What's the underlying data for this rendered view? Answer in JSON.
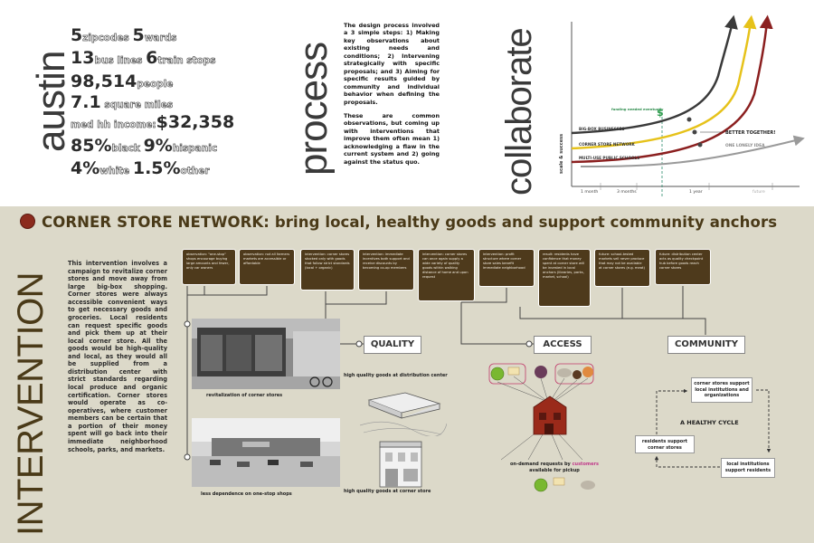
{
  "top": {
    "austin_word": "austin",
    "process_word": "process",
    "collaborate_word": "collaborate",
    "stats": [
      {
        "parts": [
          {
            "t": "5",
            "big": true
          },
          {
            "t": "zipcodes ",
            "big": false
          },
          {
            "t": "5",
            "big": true
          },
          {
            "t": "wards",
            "big": false
          }
        ]
      },
      {
        "parts": [
          {
            "t": "13",
            "big": true
          },
          {
            "t": "bus lines ",
            "big": false
          },
          {
            "t": "6",
            "big": true
          },
          {
            "t": "train stops",
            "big": false
          }
        ]
      },
      {
        "parts": [
          {
            "t": "98,514",
            "big": true
          },
          {
            "t": "people",
            "big": false
          }
        ]
      },
      {
        "parts": [
          {
            "t": "7.1",
            "big": true
          },
          {
            "t": " square miles",
            "big": false
          }
        ]
      },
      {
        "parts": [
          {
            "t": "med hh income:",
            "big": false
          },
          {
            "t": "$32,358",
            "big": true
          }
        ]
      },
      {
        "parts": [
          {
            "t": "85%",
            "big": true
          },
          {
            "t": "black ",
            "big": false
          },
          {
            "t": "9%",
            "big": true
          },
          {
            "t": "hispanic",
            "big": false
          }
        ]
      },
      {
        "parts": [
          {
            "t": "4%",
            "big": true
          },
          {
            "t": "white ",
            "big": false
          },
          {
            "t": "1.5%",
            "big": true
          },
          {
            "t": "other",
            "big": false
          }
        ]
      }
    ],
    "process_para1": "The design process involved a 3 simple steps: 1) Making key observations about existing needs and conditions; 2) Intervening strategically with specific proposals; and 3) Aiming for specific results guided by community and individual behavior when defining the proposals.",
    "process_para2": "These are common observations, but coming up with interventions that improve them often mean 1) acknowledging a flaw in the current system and 2) going against the status quo."
  },
  "chart_data": {
    "type": "line",
    "title": "",
    "xlabel": "",
    "ylabel": "scale & success",
    "x_ticks": [
      "1 month",
      "3 months",
      "1 year",
      "future"
    ],
    "series": [
      {
        "name": "BIG-BOX BUSINESSES",
        "color": "#3a3a3a"
      },
      {
        "name": "CORNER STORE NETWORK",
        "color": "#e6c21a"
      },
      {
        "name": "MULTI-USE PUBLIC SCHOOLS",
        "color": "#8b1f1f"
      },
      {
        "name": "ONE LONELY IDEA",
        "color": "#9a9a9a"
      }
    ],
    "annotations": [
      "BETTER TOGETHER!",
      "funding needed eventually",
      "$"
    ]
  },
  "bottom": {
    "intervention_word": "INTERVENTION",
    "headline": "CORNER STORE NETWORK: bring local, healthy goods and support community anchors",
    "intro": "This intervention involves a campaign to revitalize corner stores and move away from large big-box shopping. Corner stores were always accessible convenient ways to get necessary goods and groceries. Local residents can request specific goods and pick them up at their local corner store. All the goods would be high-quality and local, as they would all be supplied from a distribution center with strict standards regarding local produce and organic certification. Corner stores would operate as co-operatives, where customer members can be certain that a portion of their money spent will go back into their immediate neighborhood schools, parks, and markets.",
    "observations": [
      "observation: \"one-stop\" shops encourage buying large amounts and fewer, only car owners",
      "observation: not all farmers markets are accessible or affordable",
      "intervention: corner stores stocked only with goods that follow strict standards (local + organic)",
      "intervention: immediate incentives both support and receive discounts by becoming co-op members",
      "intervention: corner stores can once again supply a wide variety of quality goods within walking distance of home and upon request",
      "intervention: profit structure where corner store sales benefit immediate neighborhood",
      "result: residents have confidence that money spent at corner store will be invested in local anchors (libraries, parks, market, school)",
      "future: school-tested markets sell never produce that may not be available at corner stores (e.g. meat)",
      "future: distribution center acts as quality checkpoint hub before goods reach corner stores"
    ],
    "pillars": {
      "quality": "QUALITY",
      "access": "ACCESS",
      "community": "COMMUNITY"
    },
    "captions": {
      "photo1": "revitalization of corner stores",
      "photo2": "less dependence on one-stop shops",
      "quality1": "high quality goods at distribution center",
      "quality2": "high quality goods at corner store",
      "access1": "on-demand requests by",
      "access_customers": "customers",
      "access2": "available for pickup"
    },
    "cycle": {
      "top": "corner stores support local institutions and organizations",
      "center": "A HEALTHY CYCLE",
      "left": "residents support corner stores",
      "right": "local institutions support residents"
    }
  }
}
